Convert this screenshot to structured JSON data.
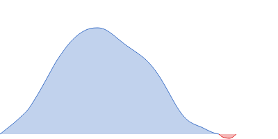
{
  "chart_data": {
    "type": "area",
    "tick_labels": false,
    "xlim": [
      0,
      400
    ],
    "ylim": [
      -7,
      193
    ],
    "x": [
      0,
      10,
      20,
      30,
      40,
      50,
      60,
      70,
      80,
      90,
      100,
      110,
      120,
      130,
      140,
      150,
      160,
      170,
      180,
      190,
      200,
      210,
      220,
      230,
      240,
      250,
      260,
      270,
      280,
      290,
      300,
      310,
      315,
      320,
      330,
      340
    ],
    "series": [
      {
        "color": "#3f72c8",
        "values": [
          0,
          8,
          16,
          25,
          35,
          50,
          67,
          85,
          103,
          118,
          131,
          141,
          148,
          152,
          153,
          151,
          145,
          137,
          129,
          122,
          115,
          107,
          96,
          82,
          65,
          47,
          31,
          20,
          14,
          10,
          5,
          1,
          0,
          null,
          null,
          null
        ]
      },
      {
        "color": "#e02020",
        "values": [
          null,
          null,
          null,
          null,
          null,
          null,
          null,
          null,
          null,
          null,
          null,
          null,
          null,
          null,
          null,
          null,
          null,
          null,
          null,
          null,
          null,
          null,
          null,
          null,
          null,
          null,
          null,
          null,
          null,
          null,
          null,
          null,
          0,
          -4,
          -6,
          0
        ]
      }
    ]
  }
}
